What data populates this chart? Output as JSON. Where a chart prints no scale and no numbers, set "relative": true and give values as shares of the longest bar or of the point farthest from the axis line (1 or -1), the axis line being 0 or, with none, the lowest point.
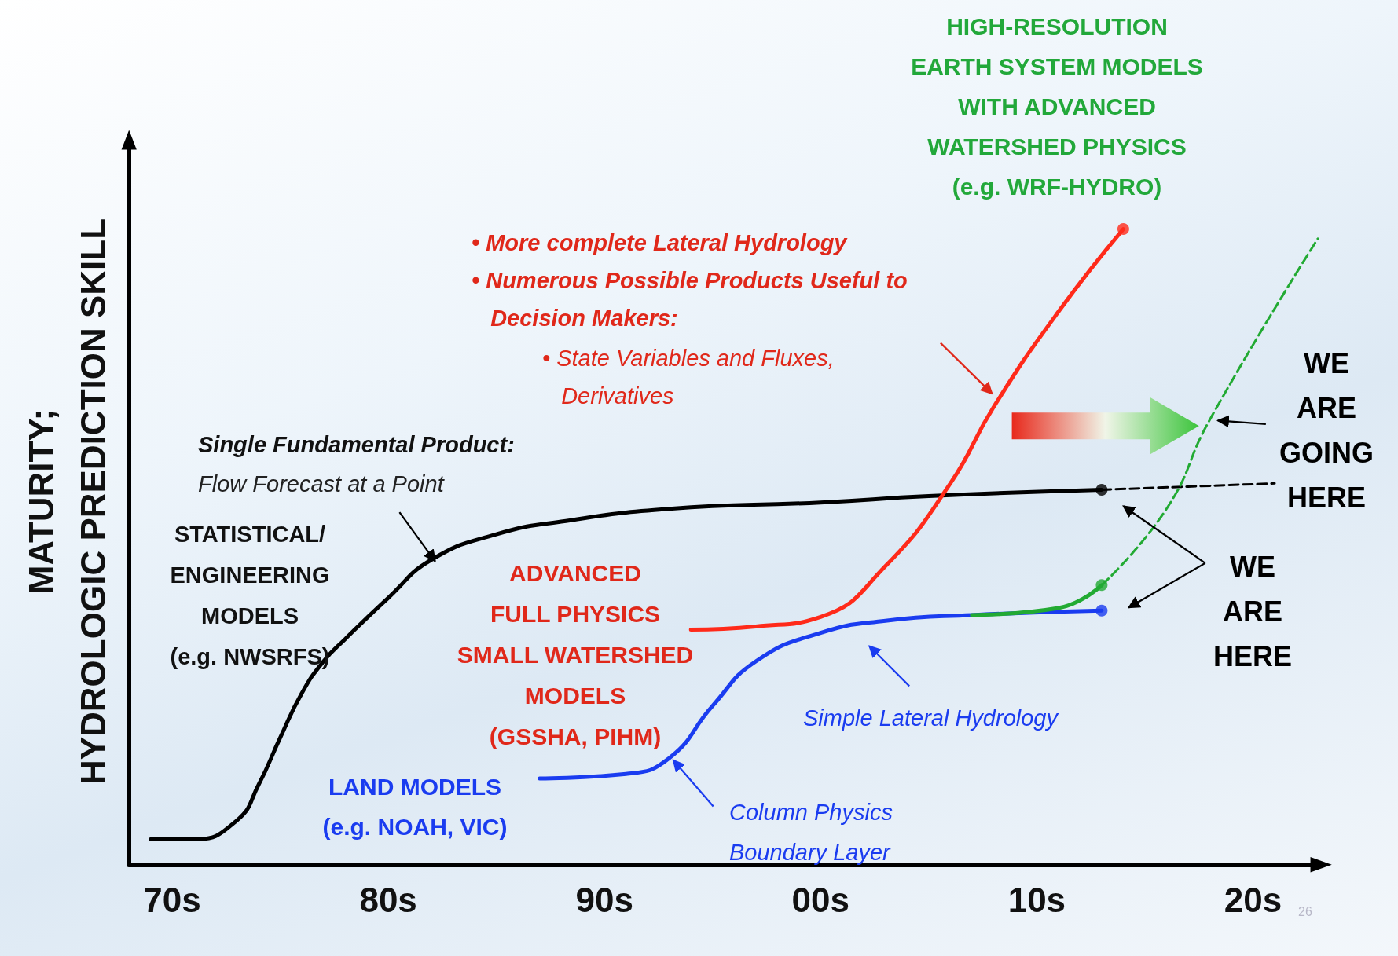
{
  "chart_data": {
    "type": "line",
    "relative": true,
    "ylabel": "MATURITY;\nHYDROLOGIC PREDICTION SKILL",
    "categories": [
      null,
      null,
      "70s",
      null,
      null,
      null,
      null,
      null,
      null,
      null,
      null,
      null,
      "80s",
      null,
      null,
      null,
      null,
      null,
      null,
      null,
      null,
      null,
      "90s",
      null,
      null,
      null,
      null,
      null,
      null,
      null,
      null,
      null,
      "00s",
      null,
      null,
      null,
      null,
      null,
      null,
      null,
      null,
      null,
      "10s",
      null,
      null,
      null,
      null,
      null,
      null,
      null,
      null,
      null,
      "20s",
      null,
      null,
      null
    ],
    "grid": false,
    "series": [
      {
        "color": "#000000",
        "line_style": "solid",
        "marker": "none",
        "values": [
          null,
          0.04,
          null,
          0.04,
          null,
          0.07,
          0.126,
          0.2,
          0.27,
          0.32,
          0.355,
          null,
          0.42,
          null,
          0.48,
          null,
          null,
          0.52,
          null,
          null,
          0.54,
          null,
          null,
          null,
          null,
          0.56,
          null,
          null,
          null,
          null,
          null,
          null,
          0.57,
          null,
          null,
          null,
          null,
          0.58,
          null,
          null,
          null,
          null,
          null,
          null,
          null,
          0.59,
          null,
          null,
          null,
          null,
          null,
          null,
          null,
          null,
          null,
          null
        ]
      },
      {
        "color": "#000000",
        "line_style": "dashed",
        "marker": "none",
        "values": [
          null,
          null,
          null,
          null,
          null,
          null,
          null,
          null,
          null,
          null,
          null,
          null,
          null,
          null,
          null,
          null,
          null,
          null,
          null,
          null,
          null,
          null,
          null,
          null,
          null,
          null,
          null,
          null,
          null,
          null,
          null,
          null,
          null,
          null,
          null,
          null,
          null,
          null,
          null,
          null,
          null,
          null,
          null,
          null,
          null,
          0.59,
          null,
          null,
          null,
          null,
          null,
          null,
          null,
          0.6,
          null,
          null
        ]
      },
      {
        "color": "#ff2a1a",
        "line_style": "solid",
        "marker": "none",
        "values": [
          null,
          null,
          null,
          null,
          null,
          null,
          null,
          null,
          null,
          null,
          null,
          null,
          null,
          null,
          null,
          null,
          null,
          null,
          null,
          null,
          null,
          null,
          null,
          null,
          null,
          null,
          0.37,
          null,
          null,
          0.375,
          null,
          null,
          0.39,
          null,
          null,
          0.47,
          null,
          null,
          0.6,
          null,
          0.72,
          null,
          null,
          0.87,
          null,
          null,
          1.0,
          null,
          null,
          null,
          null,
          null,
          null,
          null,
          null,
          null
        ]
      },
      {
        "color": "#1a3cf0",
        "line_style": "solid",
        "marker": "none",
        "values": [
          null,
          null,
          null,
          null,
          null,
          null,
          null,
          null,
          null,
          null,
          null,
          null,
          null,
          null,
          null,
          null,
          null,
          null,
          null,
          0.136,
          null,
          null,
          null,
          0.143,
          null,
          0.168,
          null,
          0.25,
          null,
          0.32,
          null,
          null,
          0.365,
          null,
          null,
          0.384,
          null,
          null,
          null,
          0.393,
          null,
          null,
          null,
          null,
          null,
          0.4,
          null,
          null,
          null,
          null,
          null,
          null,
          null,
          null,
          null,
          null
        ]
      },
      {
        "color": "#22aa33",
        "line_style": "solid",
        "marker": "none",
        "values": [
          null,
          null,
          null,
          null,
          null,
          null,
          null,
          null,
          null,
          null,
          null,
          null,
          null,
          null,
          null,
          null,
          null,
          null,
          null,
          null,
          null,
          null,
          null,
          null,
          null,
          null,
          null,
          null,
          null,
          null,
          null,
          null,
          null,
          null,
          null,
          null,
          null,
          null,
          null,
          0.393,
          null,
          null,
          null,
          0.404,
          null,
          0.44,
          null,
          null,
          null,
          null,
          null,
          null,
          null,
          null,
          null,
          null
        ]
      },
      {
        "color": "#22aa33",
        "line_style": "dashed",
        "marker": "none",
        "values": [
          null,
          null,
          null,
          null,
          null,
          null,
          null,
          null,
          null,
          null,
          null,
          null,
          null,
          null,
          null,
          null,
          null,
          null,
          null,
          null,
          null,
          null,
          null,
          null,
          null,
          null,
          null,
          null,
          null,
          null,
          null,
          null,
          null,
          null,
          null,
          null,
          null,
          null,
          null,
          null,
          null,
          null,
          null,
          null,
          null,
          0.44,
          null,
          null,
          0.56,
          null,
          0.7,
          null,
          null,
          null,
          null,
          0.985
        ]
      },
      {
        "type": "scatter",
        "color": "#000000",
        "marker": "circle",
        "values": [
          null,
          null,
          null,
          null,
          null,
          null,
          null,
          null,
          null,
          null,
          null,
          null,
          null,
          null,
          null,
          null,
          null,
          null,
          null,
          null,
          null,
          null,
          null,
          null,
          null,
          null,
          null,
          null,
          null,
          null,
          null,
          null,
          null,
          null,
          null,
          null,
          null,
          null,
          null,
          null,
          null,
          null,
          null,
          null,
          null,
          0.59,
          null,
          null,
          null,
          null,
          null,
          null,
          null,
          null,
          null,
          null
        ]
      },
      {
        "type": "scatter",
        "color": "#ff2a1a",
        "marker": "circle",
        "values": [
          null,
          null,
          null,
          null,
          null,
          null,
          null,
          null,
          null,
          null,
          null,
          null,
          null,
          null,
          null,
          null,
          null,
          null,
          null,
          null,
          null,
          null,
          null,
          null,
          null,
          null,
          null,
          null,
          null,
          null,
          null,
          null,
          null,
          null,
          null,
          null,
          null,
          null,
          null,
          null,
          null,
          null,
          null,
          null,
          null,
          null,
          1.0,
          null,
          null,
          null,
          null,
          null,
          null,
          null,
          null,
          null
        ]
      },
      {
        "type": "scatter",
        "color": "#1a3cf0",
        "marker": "circle",
        "values": [
          null,
          null,
          null,
          null,
          null,
          null,
          null,
          null,
          null,
          null,
          null,
          null,
          null,
          null,
          null,
          null,
          null,
          null,
          null,
          null,
          null,
          null,
          null,
          null,
          null,
          null,
          null,
          null,
          null,
          null,
          null,
          null,
          null,
          null,
          null,
          null,
          null,
          null,
          null,
          null,
          null,
          null,
          null,
          null,
          null,
          0.4,
          null,
          null,
          null,
          null,
          null,
          null,
          null,
          null,
          null,
          null
        ]
      },
      {
        "type": "scatter",
        "color": "#22aa33",
        "marker": "circle",
        "values": [
          null,
          null,
          null,
          null,
          null,
          null,
          null,
          null,
          null,
          null,
          null,
          null,
          null,
          null,
          null,
          null,
          null,
          null,
          null,
          null,
          null,
          null,
          null,
          null,
          null,
          null,
          null,
          null,
          null,
          null,
          null,
          null,
          null,
          null,
          null,
          null,
          null,
          null,
          null,
          null,
          null,
          null,
          null,
          null,
          null,
          0.44,
          null,
          null,
          null,
          null,
          null,
          null,
          null,
          null,
          null,
          null
        ]
      }
    ],
    "annotations": [
      "HIGH-RESOLUTION\nEARTH SYSTEM MODELS\nWITH ADVANCED\nWATERSHED PHYSICS\n(e.g. WRF-HYDRO)",
      "• More complete Lateral Hydrology\n• Numerous Possible Products Useful to\n   Decision Makers:",
      "• State Variables and Fluxes,\n   Derivatives",
      "Single Fundamental Product:",
      "Flow Forecast at a Point",
      "STATISTICAL/\nENGINEERING\nMODELS\n(e.g. NWSRFS)",
      "ADVANCED\nFULL PHYSICS\nSMALL WATERSHED\nMODELS\n(GSSHA, PIHM)",
      "LAND MODELS\n(e.g. NOAH, VIC)",
      "Simple Lateral Hydrology",
      "Column Physics\nBoundary Layer",
      "WE\nARE\nGOING\nHERE",
      "WE\nARE\nHERE",
      "26"
    ]
  }
}
